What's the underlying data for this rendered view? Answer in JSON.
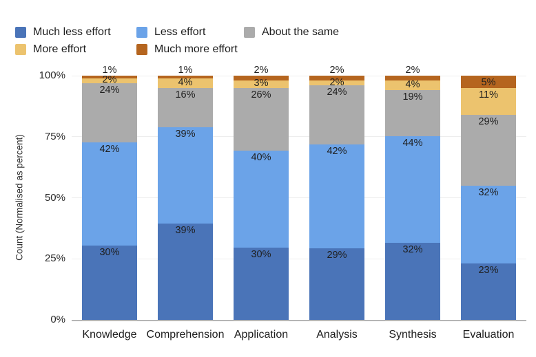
{
  "chart_data": {
    "type": "bar",
    "stacked": true,
    "normalized": true,
    "title": "",
    "xlabel": "",
    "ylabel": "Count (Normalised as percent)",
    "ylim": [
      0,
      100
    ],
    "yticks": [
      "0%",
      "25%",
      "50%",
      "75%",
      "100%"
    ],
    "grid": true,
    "legend_position": "top-left",
    "value_suffix": "%",
    "categories": [
      "Knowledge",
      "Comprehension",
      "Application",
      "Analysis",
      "Synthesis",
      "Evaluation"
    ],
    "series": [
      {
        "name": "Much less effort",
        "color": "#4a74b8",
        "values": [
          30,
          39,
          30,
          29,
          32,
          23
        ]
      },
      {
        "name": "Less effort",
        "color": "#6ba3e8",
        "values": [
          42,
          39,
          40,
          42,
          44,
          32
        ]
      },
      {
        "name": "About the same",
        "color": "#ababab",
        "values": [
          24,
          16,
          26,
          24,
          19,
          29
        ]
      },
      {
        "name": "More effort",
        "color": "#ecc36e",
        "values": [
          2,
          4,
          3,
          2,
          4,
          11
        ]
      },
      {
        "name": "Much more effort",
        "color": "#b5651f",
        "values": [
          1,
          1,
          2,
          2,
          2,
          5
        ]
      }
    ]
  },
  "colors": {
    "gridline": "#ededed",
    "axis_line": "#b5b5b5",
    "text": "#1f1f1f"
  }
}
